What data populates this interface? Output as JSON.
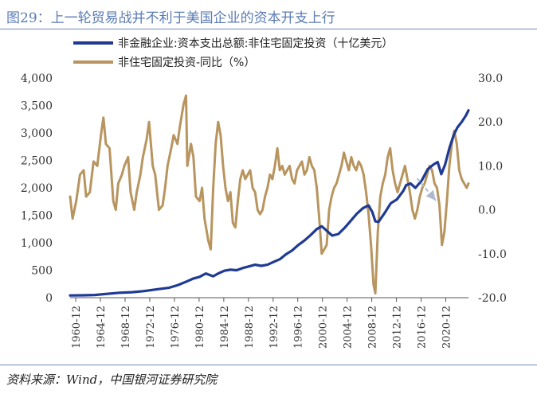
{
  "header": {
    "title": "图29：上一轮贸易战并不利于美国企业的资本开支上行"
  },
  "footer": {
    "source": "资料来源：Wind，中国银河证券研究院"
  },
  "colors": {
    "series_blue": "#1f3a93",
    "series_gold": "#b8955e",
    "rule": "#6d87c0",
    "title": "#5b7bb6",
    "arrow": "#aeb9cf"
  },
  "chart_data": {
    "type": "line",
    "title": "",
    "legend_position": "top",
    "grid": false,
    "x_ticks": [
      "1960-12",
      "1964-12",
      "1968-12",
      "1972-12",
      "1976-12",
      "1980-12",
      "1984-12",
      "1988-12",
      "1992-12",
      "1996-12",
      "2000-12",
      "2004-12",
      "2008-12",
      "2012-12",
      "2016-12",
      "2020-12"
    ],
    "y_left": {
      "range": [
        0,
        4000
      ],
      "ticks": [
        "0",
        "500",
        "1,000",
        "1,500",
        "2,000",
        "2,500",
        "3,000",
        "3,500",
        "4,000"
      ]
    },
    "y_right": {
      "range": [
        -20,
        30
      ],
      "ticks": [
        "-20.0",
        "-10.0",
        "0.0",
        "10.0",
        "20.0",
        "30.0"
      ]
    },
    "series": [
      {
        "name": "非金融企业:资本支出总额:非住宅固定投资（十亿美元）",
        "axis": "left",
        "color": "#1f3a93",
        "points": [
          [
            1960.0,
            40
          ],
          [
            1962.0,
            43
          ],
          [
            1964.0,
            50
          ],
          [
            1966.0,
            70
          ],
          [
            1968.0,
            90
          ],
          [
            1970.0,
            100
          ],
          [
            1972.0,
            120
          ],
          [
            1974.0,
            150
          ],
          [
            1976.0,
            180
          ],
          [
            1977.5,
            230
          ],
          [
            1979.0,
            300
          ],
          [
            1980.0,
            350
          ],
          [
            1981.0,
            380
          ],
          [
            1982.0,
            440
          ],
          [
            1983.2,
            390
          ],
          [
            1984.0,
            440
          ],
          [
            1985.0,
            490
          ],
          [
            1986.0,
            510
          ],
          [
            1987.0,
            500
          ],
          [
            1988.0,
            540
          ],
          [
            1989.0,
            570
          ],
          [
            1990.0,
            600
          ],
          [
            1991.0,
            580
          ],
          [
            1992.0,
            600
          ],
          [
            1993.0,
            650
          ],
          [
            1994.0,
            700
          ],
          [
            1995.0,
            790
          ],
          [
            1996.0,
            860
          ],
          [
            1997.0,
            960
          ],
          [
            1998.0,
            1040
          ],
          [
            1999.0,
            1140
          ],
          [
            2000.0,
            1250
          ],
          [
            2000.8,
            1300
          ],
          [
            2001.5,
            1230
          ],
          [
            2002.5,
            1130
          ],
          [
            2003.5,
            1160
          ],
          [
            2004.5,
            1270
          ],
          [
            2005.5,
            1400
          ],
          [
            2006.5,
            1530
          ],
          [
            2007.5,
            1630
          ],
          [
            2008.4,
            1680
          ],
          [
            2009.0,
            1560
          ],
          [
            2009.5,
            1390
          ],
          [
            2010.0,
            1380
          ],
          [
            2011.0,
            1540
          ],
          [
            2012.0,
            1720
          ],
          [
            2013.0,
            1790
          ],
          [
            2014.0,
            1940
          ],
          [
            2014.5,
            2050
          ],
          [
            2015.2,
            2080
          ],
          [
            2016.0,
            2000
          ],
          [
            2017.0,
            2130
          ],
          [
            2018.0,
            2340
          ],
          [
            2019.0,
            2430
          ],
          [
            2019.6,
            2470
          ],
          [
            2020.2,
            2250
          ],
          [
            2020.8,
            2420
          ],
          [
            2021.5,
            2720
          ],
          [
            2022.2,
            2960
          ],
          [
            2022.8,
            3100
          ],
          [
            2023.5,
            3200
          ],
          [
            2024.2,
            3320
          ],
          [
            2024.6,
            3410
          ]
        ]
      },
      {
        "name": "非住宅固定投资-同比（%）",
        "axis": "right",
        "color": "#b8955e",
        "points": [
          [
            1960.0,
            3
          ],
          [
            1960.4,
            -2
          ],
          [
            1961.0,
            2
          ],
          [
            1961.6,
            8
          ],
          [
            1962.2,
            9
          ],
          [
            1962.6,
            3
          ],
          [
            1963.2,
            4
          ],
          [
            1963.8,
            11
          ],
          [
            1964.4,
            10
          ],
          [
            1965.0,
            17
          ],
          [
            1965.4,
            21
          ],
          [
            1965.8,
            15
          ],
          [
            1966.4,
            14
          ],
          [
            1967.0,
            2
          ],
          [
            1967.4,
            0
          ],
          [
            1967.8,
            6
          ],
          [
            1968.4,
            8
          ],
          [
            1968.8,
            10
          ],
          [
            1969.4,
            12
          ],
          [
            1969.8,
            4
          ],
          [
            1970.4,
            0
          ],
          [
            1970.8,
            4
          ],
          [
            1971.4,
            8
          ],
          [
            1971.8,
            12
          ],
          [
            1972.4,
            16
          ],
          [
            1972.8,
            20
          ],
          [
            1973.4,
            10
          ],
          [
            1973.8,
            8
          ],
          [
            1974.4,
            0
          ],
          [
            1975.0,
            1
          ],
          [
            1975.4,
            5
          ],
          [
            1975.8,
            10
          ],
          [
            1976.4,
            14
          ],
          [
            1976.8,
            17
          ],
          [
            1977.4,
            15
          ],
          [
            1977.8,
            19
          ],
          [
            1978.4,
            24
          ],
          [
            1978.8,
            26
          ],
          [
            1979.0,
            10
          ],
          [
            1979.6,
            15
          ],
          [
            1980.0,
            12
          ],
          [
            1980.4,
            3
          ],
          [
            1981.0,
            2
          ],
          [
            1981.4,
            5
          ],
          [
            1981.8,
            -2
          ],
          [
            1982.4,
            -7
          ],
          [
            1982.8,
            -9
          ],
          [
            1983.2,
            5
          ],
          [
            1983.6,
            15
          ],
          [
            1984.0,
            20
          ],
          [
            1984.4,
            17
          ],
          [
            1984.8,
            10
          ],
          [
            1985.2,
            5
          ],
          [
            1985.6,
            2
          ],
          [
            1986.0,
            4
          ],
          [
            1986.4,
            -3
          ],
          [
            1986.8,
            -4
          ],
          [
            1987.2,
            2
          ],
          [
            1987.6,
            7
          ],
          [
            1988.0,
            9
          ],
          [
            1988.4,
            7
          ],
          [
            1988.8,
            8
          ],
          [
            1989.2,
            9
          ],
          [
            1989.6,
            5
          ],
          [
            1990.0,
            4
          ],
          [
            1990.4,
            0
          ],
          [
            1990.8,
            -1
          ],
          [
            1991.2,
            0
          ],
          [
            1991.6,
            3
          ],
          [
            1992.0,
            5
          ],
          [
            1992.4,
            8
          ],
          [
            1992.8,
            7
          ],
          [
            1993.2,
            10
          ],
          [
            1993.6,
            14
          ],
          [
            1994.0,
            9
          ],
          [
            1994.4,
            10
          ],
          [
            1994.8,
            8
          ],
          [
            1995.2,
            9
          ],
          [
            1995.6,
            10
          ],
          [
            1996.0,
            7
          ],
          [
            1996.4,
            6
          ],
          [
            1996.8,
            9
          ],
          [
            1997.2,
            10
          ],
          [
            1997.6,
            11
          ],
          [
            1998.0,
            8
          ],
          [
            1998.4,
            9
          ],
          [
            1998.8,
            12
          ],
          [
            1999.2,
            10
          ],
          [
            1999.6,
            9
          ],
          [
            2000.0,
            5
          ],
          [
            2000.4,
            -2
          ],
          [
            2000.8,
            -10
          ],
          [
            2001.2,
            -9
          ],
          [
            2001.6,
            -8
          ],
          [
            2002.0,
            0
          ],
          [
            2002.4,
            3
          ],
          [
            2002.8,
            5
          ],
          [
            2003.2,
            6
          ],
          [
            2003.6,
            8
          ],
          [
            2004.0,
            10
          ],
          [
            2004.4,
            13
          ],
          [
            2004.8,
            11
          ],
          [
            2005.2,
            9
          ],
          [
            2005.6,
            12
          ],
          [
            2006.0,
            10
          ],
          [
            2006.4,
            9
          ],
          [
            2006.8,
            11
          ],
          [
            2007.2,
            10
          ],
          [
            2007.6,
            8
          ],
          [
            2008.0,
            4
          ],
          [
            2008.4,
            -1
          ],
          [
            2008.8,
            -8
          ],
          [
            2009.2,
            -17
          ],
          [
            2009.5,
            -19
          ],
          [
            2009.9,
            -5
          ],
          [
            2010.3,
            3
          ],
          [
            2010.7,
            6
          ],
          [
            2011.1,
            8
          ],
          [
            2011.5,
            12
          ],
          [
            2011.9,
            14
          ],
          [
            2012.3,
            9
          ],
          [
            2012.7,
            6
          ],
          [
            2013.1,
            4
          ],
          [
            2013.5,
            6
          ],
          [
            2013.9,
            8
          ],
          [
            2014.3,
            10
          ],
          [
            2014.7,
            7
          ],
          [
            2015.1,
            4
          ],
          [
            2015.5,
            0
          ],
          [
            2015.9,
            -2
          ],
          [
            2016.3,
            0
          ],
          [
            2016.7,
            3
          ],
          [
            2017.1,
            5
          ],
          [
            2017.5,
            6
          ],
          [
            2017.9,
            8
          ],
          [
            2018.3,
            10
          ],
          [
            2018.7,
            9
          ],
          [
            2019.1,
            6
          ],
          [
            2019.5,
            5
          ],
          [
            2019.9,
            1
          ],
          [
            2020.3,
            -8
          ],
          [
            2020.7,
            -5
          ],
          [
            2021.1,
            2
          ],
          [
            2021.5,
            10
          ],
          [
            2021.9,
            15
          ],
          [
            2022.3,
            18
          ],
          [
            2022.7,
            15
          ],
          [
            2023.1,
            9
          ],
          [
            2023.5,
            7
          ],
          [
            2023.9,
            6
          ],
          [
            2024.3,
            5
          ],
          [
            2024.6,
            6
          ]
        ]
      }
    ],
    "annotations": [
      {
        "type": "arrow",
        "from": [
          2016.3,
          2170
        ],
        "to": [
          2019.3,
          1770
        ]
      }
    ]
  }
}
